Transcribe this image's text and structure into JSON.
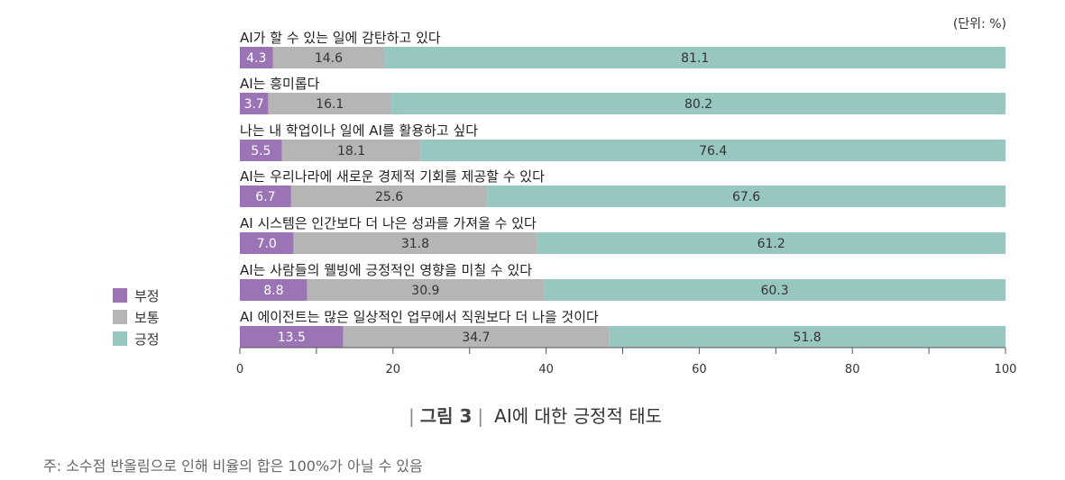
{
  "unit_label": "(단위: %)",
  "legend": [
    {
      "label": "부정",
      "color": "#9a74b4"
    },
    {
      "label": "보통",
      "color": "#b5b5b5"
    },
    {
      "label": "긍정",
      "color": "#98c6c1"
    }
  ],
  "caption": {
    "figure": "그림 3",
    "title": "AI에 대한 긍정적 태도"
  },
  "note": "주: 소수점 반올림으로 인해 비율의 합은 100%가 아닐 수 있음",
  "chart_data": {
    "type": "bar",
    "orientation": "horizontal",
    "stacked": true,
    "categories": [
      "AI가 할 수 있는 일에 감탄하고 있다",
      "AI는 흥미롭다",
      "나는 내 학업이나 일에 AI를 활용하고 싶다",
      "AI는 우리나라에 새로운 경제적 기회를 제공할 수 있다",
      "AI 시스템은 인간보다 더 나은 성과를 가져올 수 있다",
      "AI는 사람들의 웰빙에 긍정적인 영향을 미칠 수 있다",
      "AI 에이전트는 많은 일상적인 업무에서 직원보다 더 나을 것이다"
    ],
    "series": [
      {
        "name": "부정",
        "values": [
          4.3,
          3.7,
          5.5,
          6.7,
          7.0,
          8.8,
          13.5
        ],
        "labels": [
          "4.3",
          "3.7",
          "5.5",
          "6.7",
          "7.0",
          "8.8",
          "13.5"
        ]
      },
      {
        "name": "보통",
        "values": [
          14.6,
          16.1,
          18.1,
          25.6,
          31.8,
          30.9,
          34.7
        ],
        "labels": [
          "14.6",
          "16.1",
          "18.1",
          "25.6",
          "31.8",
          "30.9",
          "34.7"
        ]
      },
      {
        "name": "긍정",
        "values": [
          81.1,
          80.2,
          76.4,
          67.6,
          61.2,
          60.3,
          51.8
        ],
        "labels": [
          "81.1",
          "80.2",
          "76.4",
          "67.6",
          "61.2",
          "60.3",
          "51.8"
        ]
      }
    ],
    "xlim": [
      0,
      100
    ],
    "xticks": [
      0,
      20,
      40,
      60,
      80,
      100
    ],
    "grid": false,
    "legend_position": "left"
  }
}
